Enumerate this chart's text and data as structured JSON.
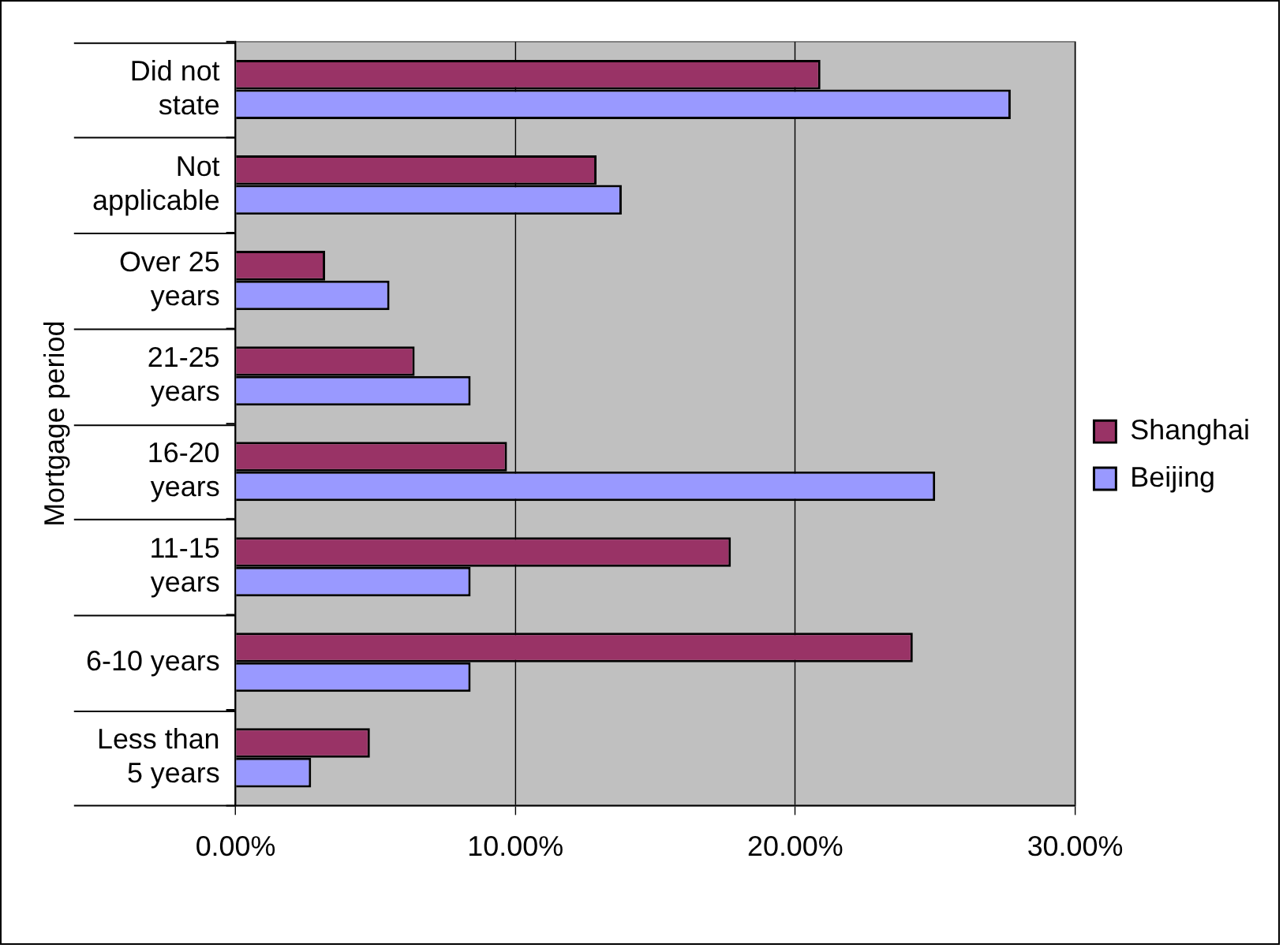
{
  "chart_data": {
    "type": "bar",
    "orientation": "horizontal",
    "ylabel": "Mortgage period",
    "categories": [
      "Did not state",
      "Not applicable",
      "Over 25 years",
      "21-25 years",
      "16-20 years",
      "11-15 years",
      "6-10 years",
      "Less than 5 years"
    ],
    "series": [
      {
        "name": "Shanghai",
        "color": "#993366",
        "values": [
          20.9,
          12.9,
          3.2,
          6.4,
          9.7,
          17.7,
          24.2,
          4.8
        ]
      },
      {
        "name": "Beijing",
        "color": "#9999ff",
        "values": [
          27.7,
          13.8,
          5.5,
          8.4,
          25.0,
          8.4,
          8.4,
          2.7
        ]
      }
    ],
    "xlim": [
      0,
      30
    ],
    "xticks": [
      {
        "value": 0,
        "label": "0.00%"
      },
      {
        "value": 10,
        "label": "10.00%"
      },
      {
        "value": 20,
        "label": "20.00%"
      },
      {
        "value": 30,
        "label": "30.00%"
      }
    ],
    "grid": "x",
    "legend": "right"
  }
}
